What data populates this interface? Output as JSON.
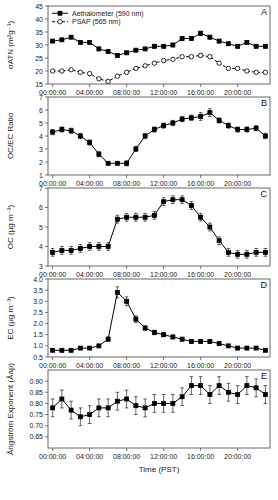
{
  "chart_data": [
    {
      "type": "line",
      "title": "A",
      "ylabel": "σATN (m²g⁻¹)",
      "x": [
        0,
        1,
        2,
        3,
        4,
        5,
        6,
        7,
        8,
        9,
        10,
        11,
        12,
        13,
        14,
        15,
        16,
        17,
        18,
        19,
        20,
        21,
        22,
        23
      ],
      "xlim": [
        -0.5,
        23.5
      ],
      "xticks": [
        {
          "value": 0,
          "label": "00:00:00"
        },
        {
          "value": 4,
          "label": "04:00:00"
        },
        {
          "value": 8,
          "label": "08:00:00"
        },
        {
          "value": 12,
          "label": "12:00:00"
        },
        {
          "value": 16,
          "label": "16:00:00"
        },
        {
          "value": 20,
          "label": "20:00:00"
        }
      ],
      "ylim": [
        15,
        45
      ],
      "yticks": [
        15,
        20,
        25,
        30,
        35,
        40,
        45
      ],
      "grid": false,
      "legend": "upper-left",
      "series": [
        {
          "name": "Aethalometer (590 nm)",
          "color": "#000000",
          "marker": "square",
          "line_style": "solid",
          "values": [
            31.5,
            32.0,
            33.0,
            31.0,
            31.0,
            28.5,
            27.5,
            26.0,
            27.0,
            28.0,
            28.5,
            29.5,
            29.5,
            30.0,
            32.5,
            32.5,
            34.5,
            33.0,
            31.5,
            30.5,
            29.5,
            31.0,
            29.5,
            29.5
          ],
          "errors": [
            0.5,
            0.5,
            0.6,
            0.6,
            0.5,
            0.7,
            0.6,
            0.7,
            0.6,
            0.6,
            0.5,
            0.6,
            0.6,
            0.7,
            0.7,
            0.7,
            0.8,
            0.7,
            0.6,
            0.6,
            0.6,
            0.6,
            0.6,
            0.6
          ]
        },
        {
          "name": "PSAP (565 nm)",
          "color": "#000000",
          "marker": "open-circle",
          "line_style": "dashed",
          "values": [
            20.0,
            20.0,
            20.5,
            19.5,
            19.0,
            17.0,
            16.0,
            18.0,
            19.5,
            21.0,
            22.0,
            23.0,
            24.0,
            24.5,
            25.5,
            25.5,
            26.0,
            25.5,
            23.0,
            21.0,
            21.0,
            20.0,
            19.5,
            19.5
          ],
          "errors": [
            0.5,
            0.5,
            0.5,
            0.5,
            0.5,
            0.5,
            0.5,
            0.5,
            0.5,
            0.5,
            0.5,
            0.5,
            0.5,
            0.5,
            0.5,
            0.5,
            0.6,
            0.6,
            0.5,
            0.5,
            0.5,
            0.5,
            0.5,
            0.5
          ]
        }
      ]
    },
    {
      "type": "line",
      "title": "B",
      "ylabel": "OC/EC Ratio",
      "x": [
        0,
        1,
        2,
        3,
        4,
        5,
        6,
        7,
        8,
        9,
        10,
        11,
        12,
        13,
        14,
        15,
        16,
        17,
        18,
        19,
        20,
        21,
        22,
        23
      ],
      "xlim": [
        -0.5,
        23.5
      ],
      "xticks": [
        {
          "value": 0,
          "label": "00:00:00"
        },
        {
          "value": 4,
          "label": "04:00:00"
        },
        {
          "value": 8,
          "label": "08:00:00"
        },
        {
          "value": 12,
          "label": "12:00:00"
        },
        {
          "value": 16,
          "label": "16:00:00"
        },
        {
          "value": 20,
          "label": "20:00:00"
        }
      ],
      "ylim": [
        1,
        7
      ],
      "yticks": [
        1,
        2,
        3,
        4,
        5,
        6,
        7
      ],
      "grid": false,
      "series": [
        {
          "color": "#000000",
          "marker": "square",
          "line_style": "solid",
          "values": [
            4.3,
            4.5,
            4.4,
            4.0,
            3.5,
            2.6,
            1.9,
            1.9,
            1.9,
            3.0,
            4.0,
            4.5,
            4.8,
            5.0,
            5.3,
            5.4,
            5.5,
            5.8,
            5.2,
            4.8,
            4.5,
            4.5,
            4.6,
            4.0
          ],
          "errors": [
            0.2,
            0.2,
            0.2,
            0.2,
            0.2,
            0.2,
            0.1,
            0.1,
            0.2,
            0.2,
            0.2,
            0.2,
            0.2,
            0.2,
            0.2,
            0.2,
            0.3,
            0.3,
            0.2,
            0.2,
            0.2,
            0.2,
            0.2,
            0.2
          ]
        }
      ]
    },
    {
      "type": "line",
      "title": "C",
      "ylabel": "OC (µg m⁻³)",
      "x": [
        0,
        1,
        2,
        3,
        4,
        5,
        6,
        7,
        8,
        9,
        10,
        11,
        12,
        13,
        14,
        15,
        16,
        17,
        18,
        19,
        20,
        21,
        22,
        23
      ],
      "xlim": [
        -0.5,
        23.5
      ],
      "xticks": [
        {
          "value": 0,
          "label": "00:00:00"
        },
        {
          "value": 4,
          "label": "04:00:00"
        },
        {
          "value": 8,
          "label": "08:00:00"
        },
        {
          "value": 12,
          "label": "12:00:00"
        },
        {
          "value": 16,
          "label": "16:00:00"
        },
        {
          "value": 20,
          "label": "20:00:00"
        }
      ],
      "ylim": [
        3,
        7
      ],
      "yticks": [
        3,
        4,
        5,
        6,
        7
      ],
      "grid": false,
      "series": [
        {
          "color": "#000000",
          "marker": "square",
          "line_style": "solid",
          "values": [
            3.7,
            3.8,
            3.8,
            3.9,
            4.0,
            4.0,
            4.0,
            5.4,
            5.5,
            5.5,
            5.5,
            5.6,
            6.3,
            6.4,
            6.4,
            6.1,
            5.5,
            5.0,
            4.3,
            3.7,
            3.6,
            3.6,
            3.7,
            3.7
          ],
          "errors": [
            0.2,
            0.2,
            0.2,
            0.2,
            0.2,
            0.2,
            0.2,
            0.2,
            0.2,
            0.2,
            0.2,
            0.2,
            0.2,
            0.2,
            0.2,
            0.2,
            0.2,
            0.2,
            0.2,
            0.2,
            0.2,
            0.2,
            0.2,
            0.2
          ]
        }
      ]
    },
    {
      "type": "line",
      "title": "D",
      "ylabel": "EC (µg m⁻³)",
      "x": [
        0,
        1,
        2,
        3,
        4,
        5,
        6,
        7,
        8,
        9,
        10,
        11,
        12,
        13,
        14,
        15,
        16,
        17,
        18,
        19,
        20,
        21,
        22,
        23
      ],
      "xlim": [
        -0.5,
        23.5
      ],
      "xticks": [
        {
          "value": 0,
          "label": "00:00:00"
        },
        {
          "value": 4,
          "label": "04:00:00"
        },
        {
          "value": 8,
          "label": "08:00:00"
        },
        {
          "value": 12,
          "label": "12:00:00"
        },
        {
          "value": 16,
          "label": "16:00:00"
        },
        {
          "value": 20,
          "label": "20:00:00"
        }
      ],
      "ylim": [
        0.5,
        4.0
      ],
      "yticks": [
        0.5,
        {
          "value": 1.0,
          "label": "1.0"
        },
        1.5,
        {
          "value": 2.0,
          "label": "2.0"
        },
        2.5,
        {
          "value": 3.0,
          "label": "3.0"
        },
        3.5,
        {
          "value": 4.0,
          "label": "4.0"
        }
      ],
      "grid": false,
      "series": [
        {
          "color": "#000000",
          "marker": "square",
          "line_style": "solid",
          "values": [
            0.8,
            0.8,
            0.8,
            0.9,
            0.9,
            1.0,
            1.3,
            3.4,
            3.0,
            2.2,
            1.8,
            1.6,
            1.5,
            1.4,
            1.3,
            1.2,
            1.2,
            1.2,
            1.1,
            1.0,
            0.9,
            0.9,
            0.9,
            0.8
          ],
          "errors": [
            0.05,
            0.05,
            0.05,
            0.05,
            0.05,
            0.05,
            0.1,
            0.25,
            0.2,
            0.15,
            0.1,
            0.1,
            0.08,
            0.08,
            0.08,
            0.08,
            0.08,
            0.08,
            0.08,
            0.06,
            0.06,
            0.06,
            0.05,
            0.05
          ]
        }
      ]
    },
    {
      "type": "line",
      "title": "E",
      "ylabel": "Ångström Exponent (Åap)",
      "xlabel": "Time (PST)",
      "x": [
        0,
        1,
        2,
        3,
        4,
        5,
        6,
        7,
        8,
        9,
        10,
        11,
        12,
        13,
        14,
        15,
        16,
        17,
        18,
        19,
        20,
        21,
        22,
        23
      ],
      "xlim": [
        -0.5,
        23.5
      ],
      "xticks": [
        {
          "value": 0,
          "label": "00:00:00"
        },
        {
          "value": 4,
          "label": "04:00:00"
        },
        {
          "value": 8,
          "label": "08:00:00"
        },
        {
          "value": 12,
          "label": "12:00:00"
        },
        {
          "value": 16,
          "label": "16:00:00"
        },
        {
          "value": 20,
          "label": "20:00:00"
        }
      ],
      "ylim": [
        0.6,
        0.95
      ],
      "yticks": [
        0.65,
        {
          "value": 0.7,
          "label": "0.70"
        },
        0.75,
        {
          "value": 0.8,
          "label": "0.80"
        },
        0.85,
        {
          "value": 0.9,
          "label": "0.90"
        }
      ],
      "grid": false,
      "series": [
        {
          "color": "#000000",
          "marker": "square",
          "line_style": "solid",
          "values": [
            0.78,
            0.82,
            0.77,
            0.74,
            0.75,
            0.78,
            0.78,
            0.81,
            0.82,
            0.79,
            0.78,
            0.8,
            0.8,
            0.8,
            0.83,
            0.88,
            0.88,
            0.84,
            0.88,
            0.85,
            0.84,
            0.88,
            0.87,
            0.84
          ],
          "errors": [
            0.04,
            0.04,
            0.04,
            0.04,
            0.04,
            0.04,
            0.04,
            0.04,
            0.04,
            0.04,
            0.04,
            0.04,
            0.04,
            0.04,
            0.04,
            0.04,
            0.04,
            0.04,
            0.04,
            0.04,
            0.04,
            0.04,
            0.04,
            0.04
          ]
        }
      ]
    }
  ]
}
